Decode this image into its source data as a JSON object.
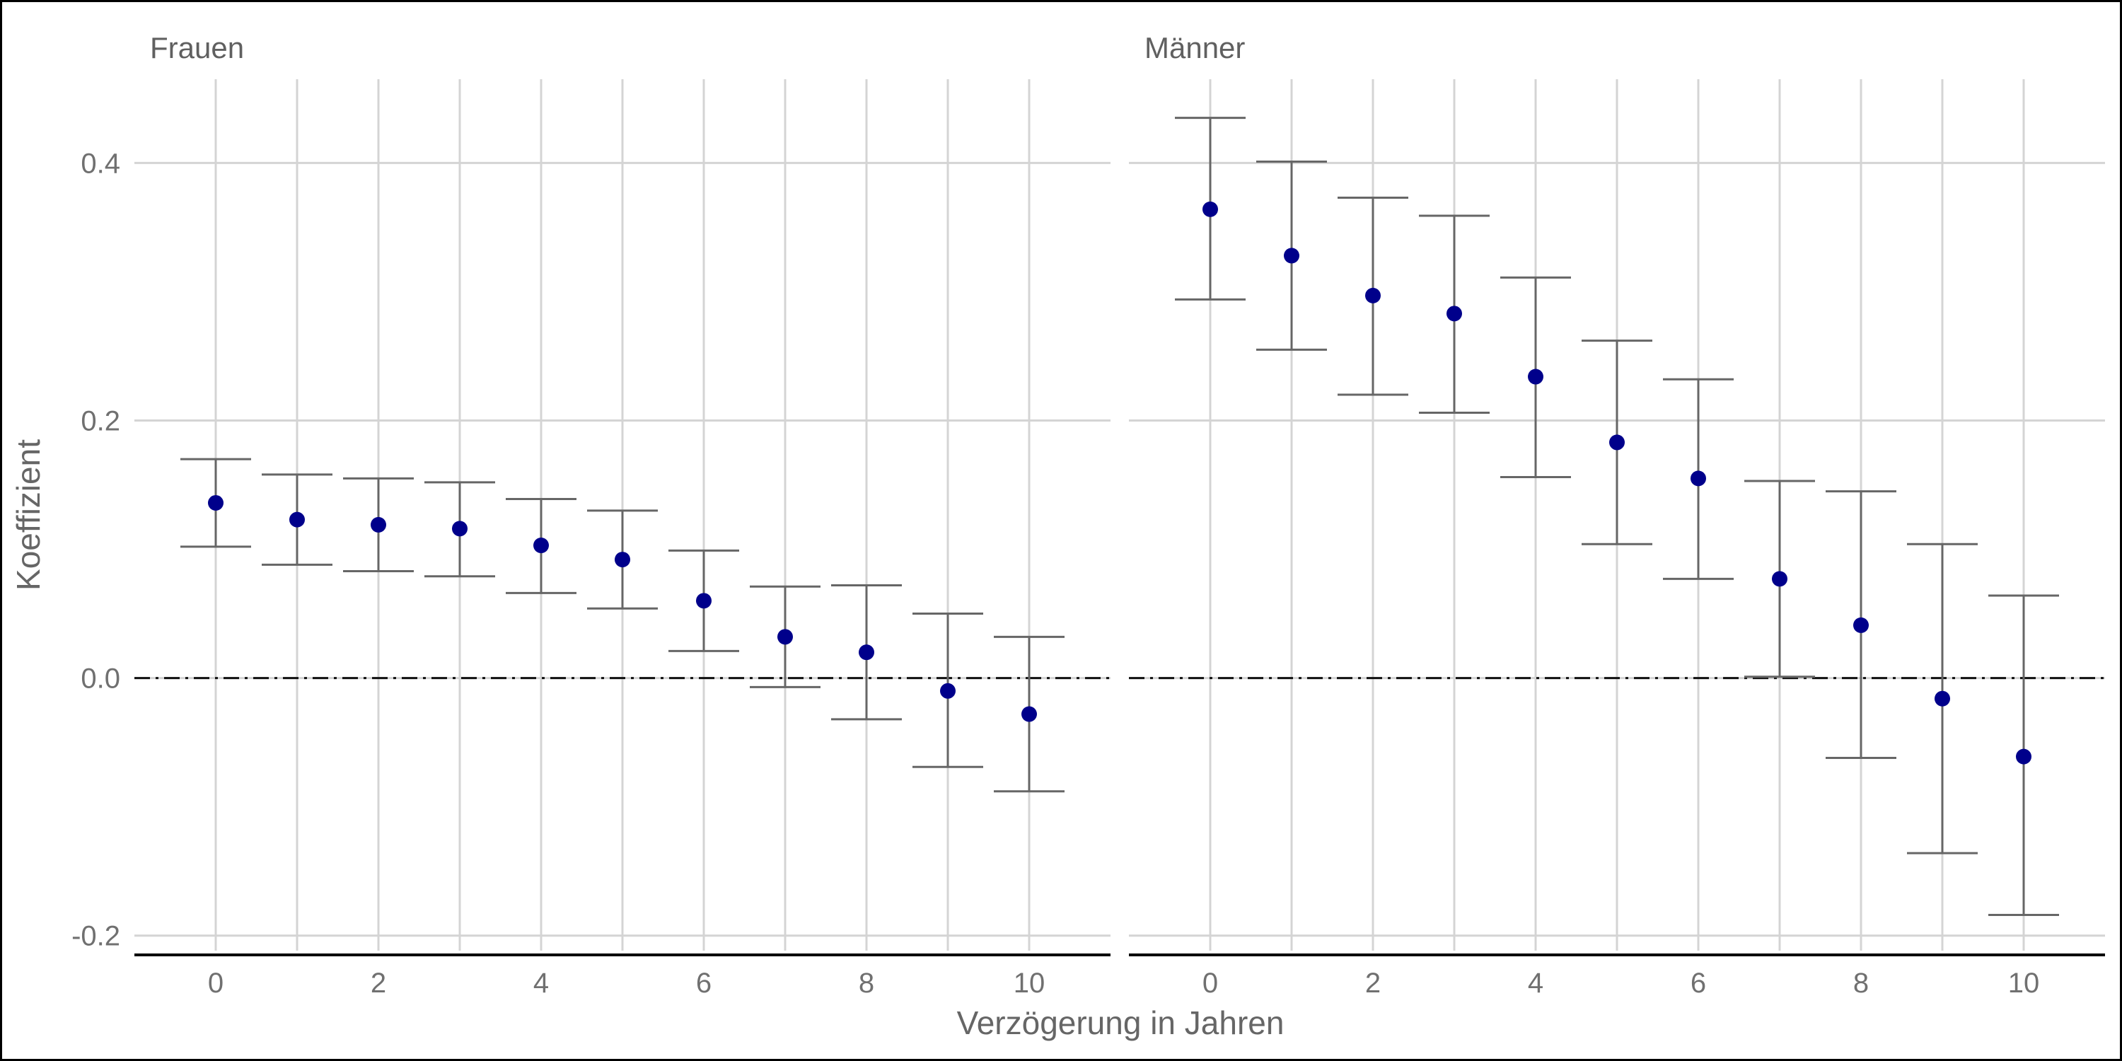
{
  "chart_data": {
    "type": "scatter",
    "xlabel": "Verzögerung in Jahren",
    "ylabel": "Koeffizient",
    "ylim": [
      -0.215,
      0.465
    ],
    "xlim": [
      -1,
      11
    ],
    "y_ticks": [
      -0.2,
      0.0,
      0.2,
      0.4
    ],
    "y_tick_labels": [
      "-0.2",
      "0.0",
      "0.2",
      "0.4"
    ],
    "x_ticks": [
      0,
      2,
      4,
      6,
      8,
      10
    ],
    "x_tick_labels": [
      "0",
      "2",
      "4",
      "6",
      "8",
      "10"
    ],
    "grid": true,
    "reference_line": {
      "y": 0,
      "style": "dash-dot"
    },
    "point_color": "#00008b",
    "errorbar_color": "#666666",
    "panels": [
      {
        "name": "Frauen",
        "x": [
          0,
          1,
          2,
          3,
          4,
          5,
          6,
          7,
          8,
          9,
          10
        ],
        "y": [
          0.136,
          0.123,
          0.119,
          0.116,
          0.103,
          0.092,
          0.06,
          0.032,
          0.02,
          -0.01,
          -0.028
        ],
        "lower": [
          0.102,
          0.088,
          0.083,
          0.079,
          0.066,
          0.054,
          0.021,
          -0.007,
          -0.032,
          -0.069,
          -0.088
        ],
        "upper": [
          0.17,
          0.158,
          0.155,
          0.152,
          0.139,
          0.13,
          0.099,
          0.071,
          0.072,
          0.05,
          0.032
        ]
      },
      {
        "name": "Männer",
        "x": [
          0,
          1,
          2,
          3,
          4,
          5,
          6,
          7,
          8,
          9,
          10
        ],
        "y": [
          0.364,
          0.328,
          0.297,
          0.283,
          0.234,
          0.183,
          0.155,
          0.077,
          0.041,
          -0.016,
          -0.061
        ],
        "lower": [
          0.294,
          0.255,
          0.22,
          0.206,
          0.156,
          0.104,
          0.077,
          0.001,
          -0.062,
          -0.136,
          -0.184
        ],
        "upper": [
          0.435,
          0.401,
          0.373,
          0.359,
          0.311,
          0.262,
          0.232,
          0.153,
          0.145,
          0.104,
          0.064
        ]
      }
    ]
  }
}
